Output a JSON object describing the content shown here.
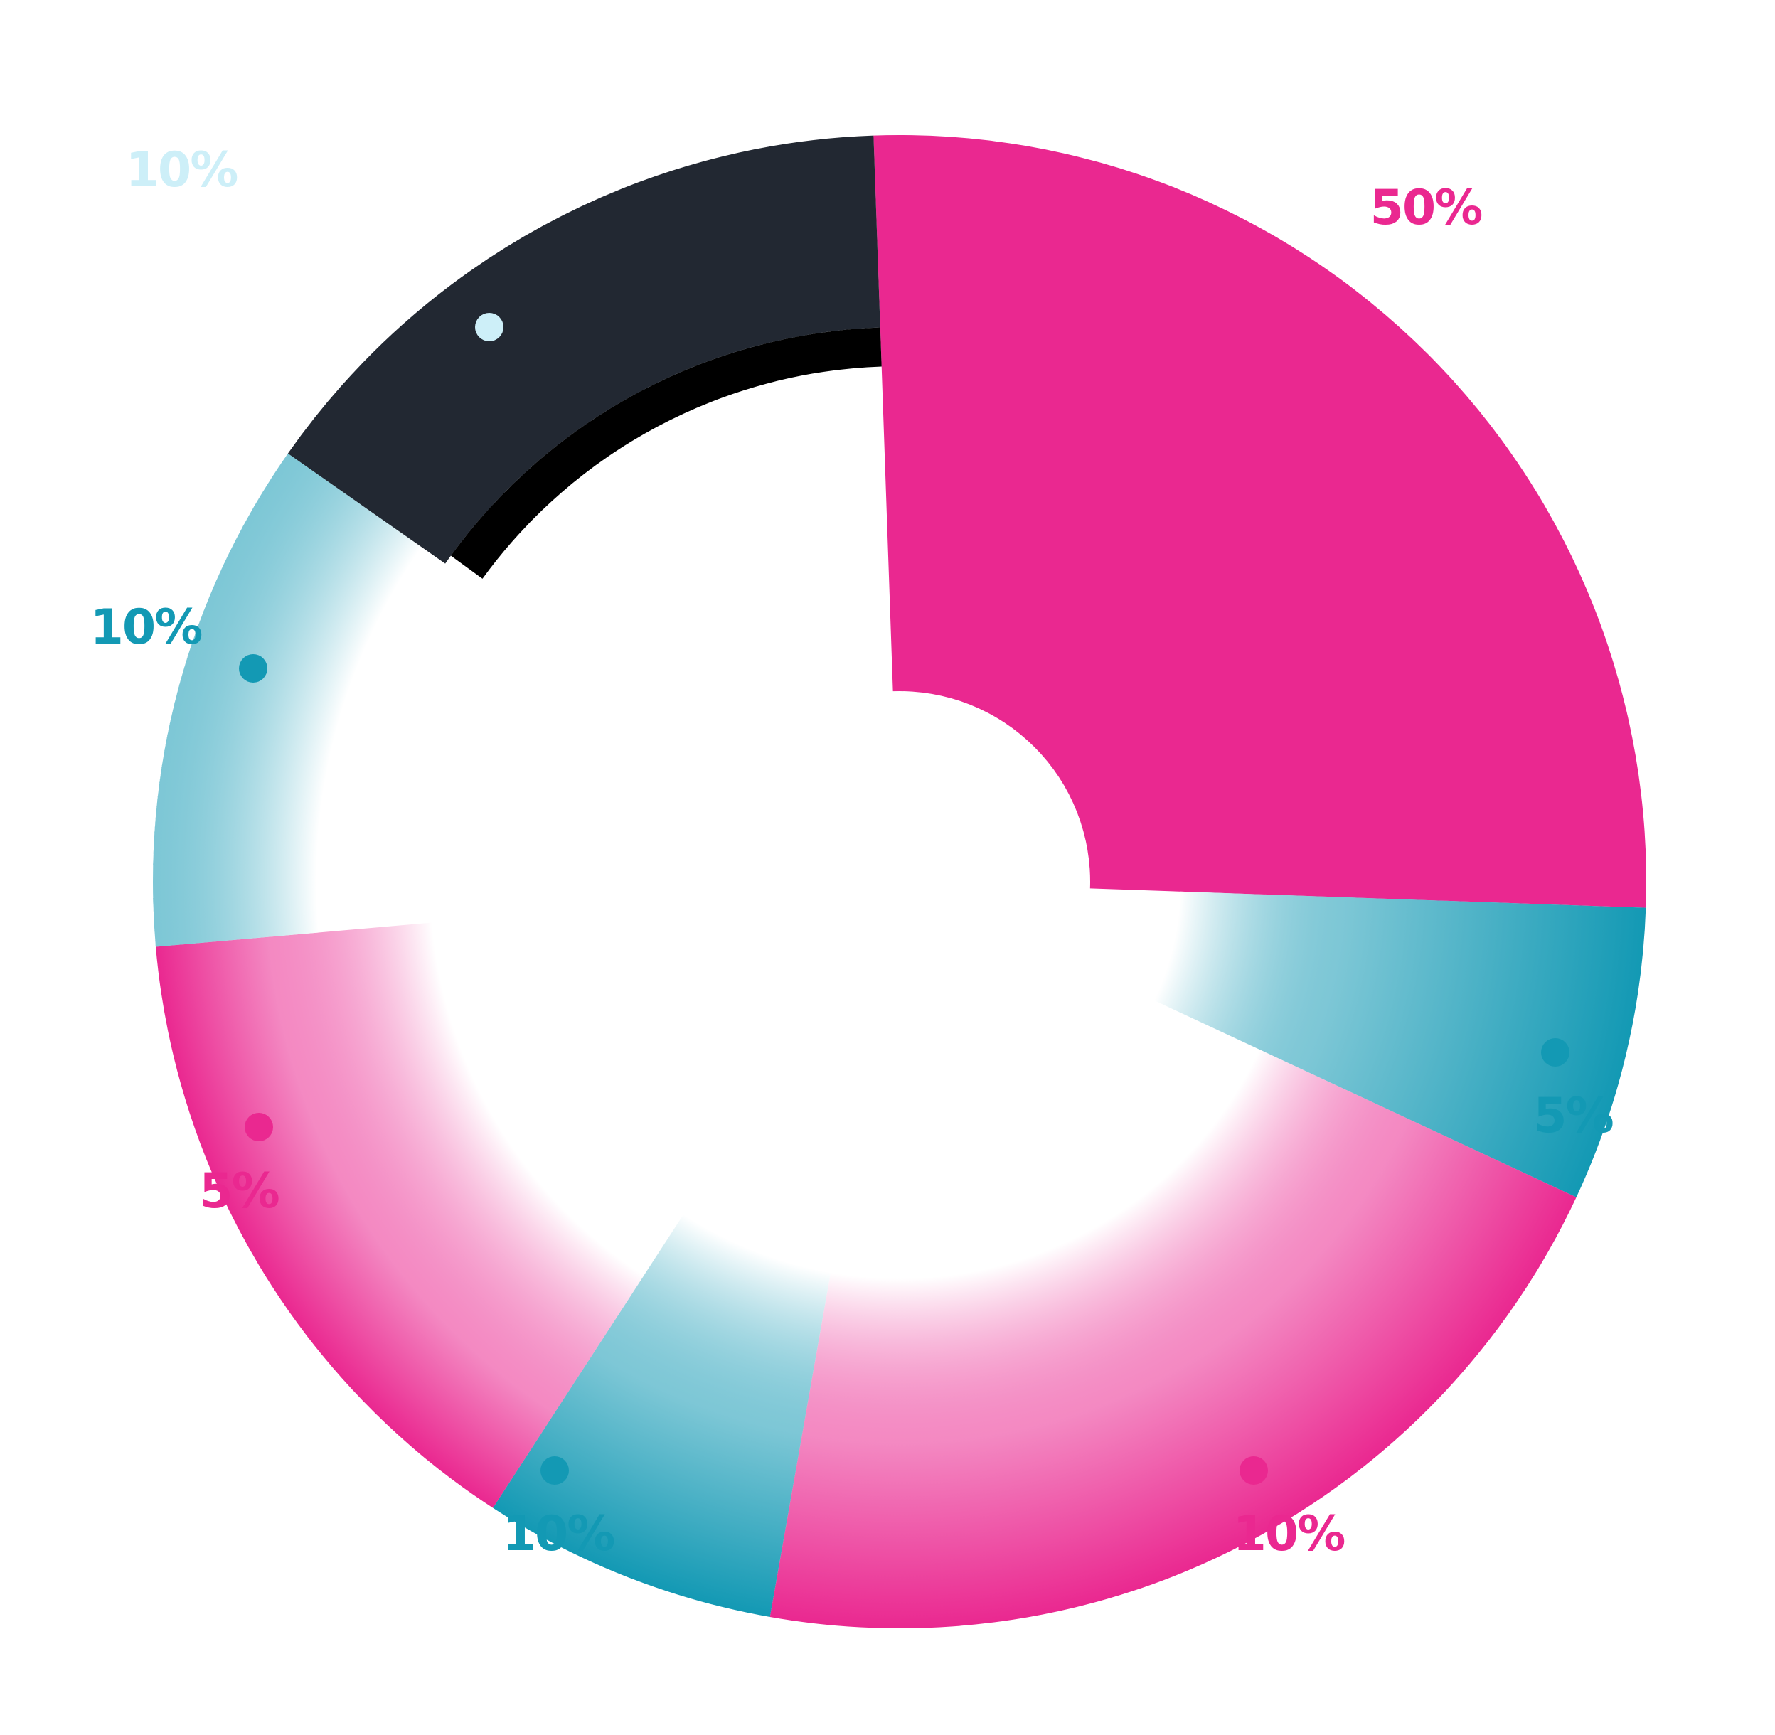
{
  "chart_data": {
    "type": "pie",
    "variant": "donut",
    "legend": "none",
    "slices": [
      {
        "label": "50%",
        "value": 50,
        "color": "#EA2890",
        "style": "solid"
      },
      {
        "label": "5%",
        "value": 5,
        "color": "#1399B4",
        "style": "fade"
      },
      {
        "label": "10%",
        "value": 10,
        "color": "#EA2890",
        "style": "fade"
      },
      {
        "label": "10%",
        "value": 10,
        "color": "#1399B4",
        "style": "fade"
      },
      {
        "label": "5%",
        "value": 5,
        "color": "#EA2890",
        "style": "fade"
      },
      {
        "label": "10%",
        "value": 10,
        "color": "#1399B4",
        "style": "fade"
      },
      {
        "label": "10%",
        "value": 10,
        "color": "#222832",
        "style": "solid",
        "label_color": "#CDEFF8",
        "inner_band_color": "#000000"
      }
    ]
  }
}
